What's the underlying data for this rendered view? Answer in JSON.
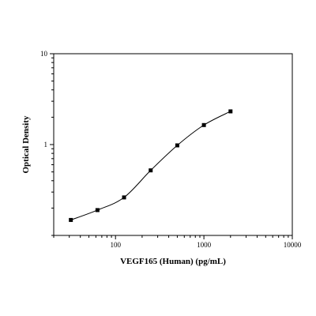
{
  "chart_data": {
    "type": "scatter",
    "title": "",
    "xlabel": "VEGF165 (Human) (pg/mL)",
    "ylabel": "Optical Density",
    "x_scale": "log",
    "y_scale": "log",
    "xlim": [
      20,
      10000
    ],
    "ylim": [
      0.1,
      10
    ],
    "x_ticks": [
      100,
      1000,
      10000
    ],
    "x_tick_labels": [
      "100",
      "1000",
      "10000"
    ],
    "y_ticks": [
      1,
      10
    ],
    "y_tick_labels": [
      "1",
      "10"
    ],
    "grid": false,
    "legend": "none",
    "series": [
      {
        "x": [
          31.25,
          62.5,
          125,
          250,
          500,
          1000,
          2000
        ],
        "y": [
          0.148,
          0.19,
          0.262,
          0.52,
          0.98,
          1.64,
          2.32
        ]
      }
    ],
    "fit_curve": true,
    "marker": "square",
    "color": "#000000"
  }
}
